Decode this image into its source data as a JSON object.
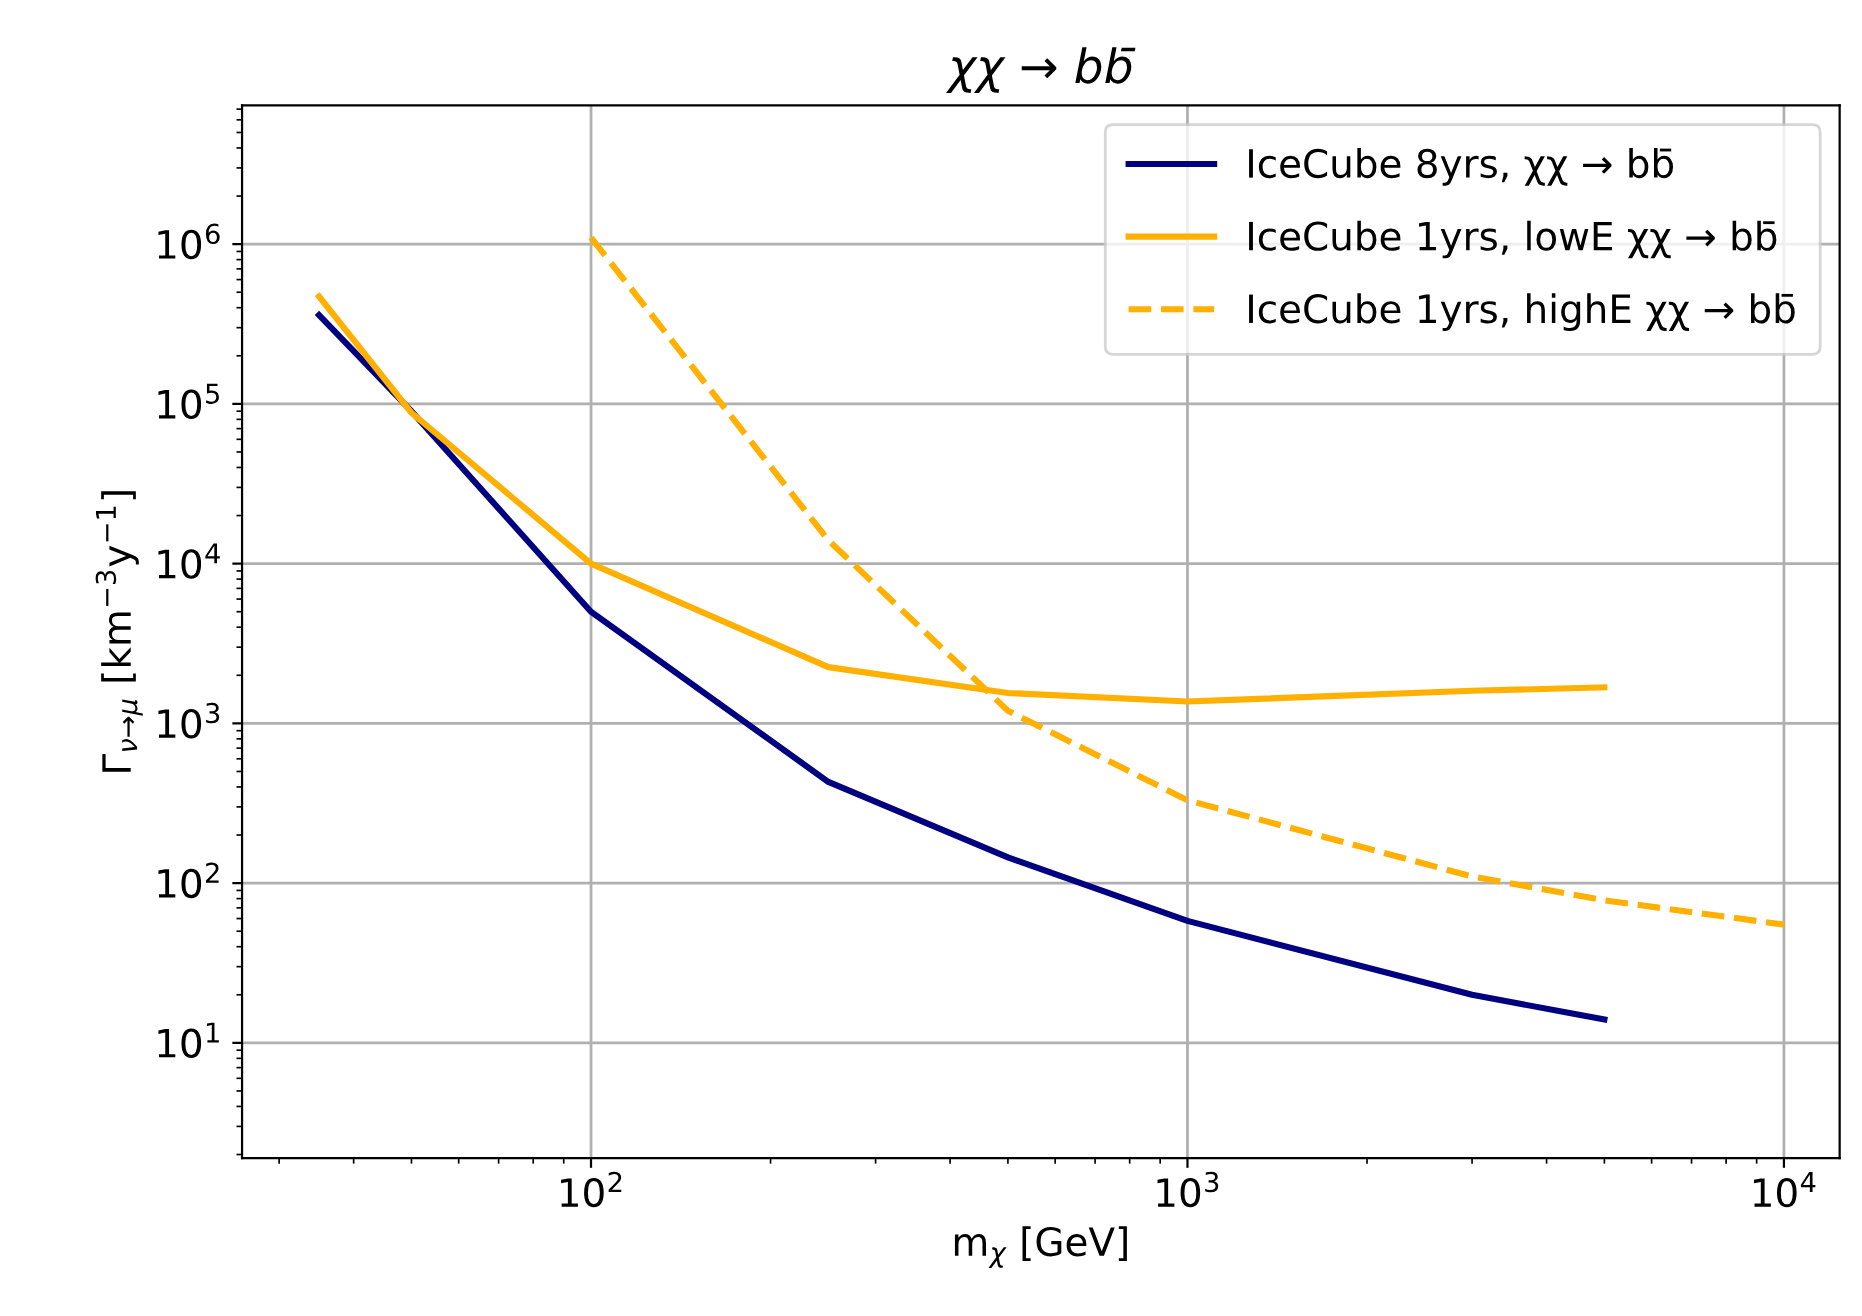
{
  "chart_data": {
    "type": "line",
    "title": "χχ → bb̄",
    "xlabel": "m$_{χ}$ [GeV]",
    "ylabel": "Γ$_{ν→μ}$ [km$^{−3}$y$^{−1}$]",
    "log": "xy",
    "grid": true,
    "legend": "top right",
    "xlim": [
      26,
      12400
    ],
    "ylim": [
      1.9,
      7400000
    ],
    "xticks": [
      {
        "value": 100,
        "label": "10$^{2}$"
      },
      {
        "value": 1000,
        "label": "10$^{3}$"
      },
      {
        "value": 10000,
        "label": "10$^{4}$"
      }
    ],
    "yticks": [
      {
        "value": 10,
        "label": "10$^{1}$"
      },
      {
        "value": 100,
        "label": "10$^{2}$"
      },
      {
        "value": 1000,
        "label": "10$^{3}$"
      },
      {
        "value": 10000,
        "label": "10$^{4}$"
      },
      {
        "value": 100000,
        "label": "10$^{5}$"
      },
      {
        "value": 1000000,
        "label": "10$^{6}$"
      }
    ],
    "series": [
      {
        "name": "IceCube 8yrs, χχ → bb̄",
        "color": "#000080",
        "line_style": "solid",
        "x": [
          35,
          50,
          100,
          250,
          500,
          1000,
          3000,
          5000
        ],
        "values": [
          360000,
          90000,
          5000,
          430,
          145,
          58,
          20,
          14
        ]
      },
      {
        "name": "IceCube 1yrs, lowE χχ → bb̄",
        "color": "#ffb000",
        "line_style": "solid",
        "x": [
          35,
          50,
          100,
          250,
          500,
          1000,
          3000,
          5000
        ],
        "values": [
          470000,
          88000,
          10000,
          2250,
          1550,
          1370,
          1600,
          1680
        ]
      },
      {
        "name": "IceCube 1yrs, highE χχ → bb̄",
        "color": "#ffb000",
        "line_style": "dashed",
        "x": [
          100,
          250,
          500,
          1000,
          3000,
          5000,
          10000
        ],
        "values": [
          1100000,
          14000,
          1200,
          330,
          110,
          78,
          55
        ]
      }
    ]
  }
}
